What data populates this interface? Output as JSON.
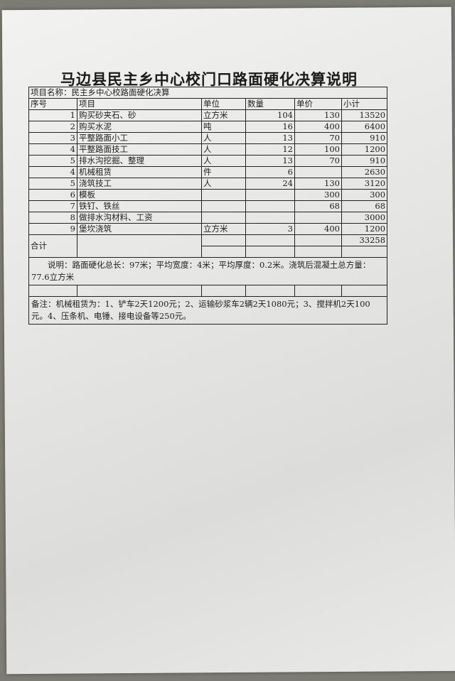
{
  "title": "马边县民主乡中心校门口路面硬化决算说明",
  "project_name": "项目名称：民主乡中心校路面硬化决算",
  "headers": [
    "序号",
    "项目",
    "单位",
    "数量",
    "单价",
    "小计"
  ],
  "rows": [
    [
      "1",
      "购买砂夹石、砂",
      "立方米",
      "104",
      "130",
      "13520"
    ],
    [
      "2",
      "购买水泥",
      "吨",
      "16",
      "400",
      "6400"
    ],
    [
      "3",
      "平整路面小工",
      "人",
      "13",
      "70",
      "910"
    ],
    [
      "4",
      "平整路面技工",
      "人",
      "12",
      "100",
      "1200"
    ],
    [
      "5",
      "排水沟挖掘、整理",
      "人",
      "13",
      "70",
      "910"
    ],
    [
      "4",
      "机械租赁",
      "件",
      "6",
      "",
      "2630"
    ],
    [
      "5",
      "浇筑技工",
      "人",
      "24",
      "130",
      "3120"
    ],
    [
      "6",
      "模板",
      "",
      "",
      "300",
      "300"
    ],
    [
      "7",
      "铁钉、铁丝",
      "",
      "",
      "68",
      "68"
    ],
    [
      "8",
      "做排水沟材料、工资",
      "",
      "",
      "",
      "3000"
    ],
    [
      "9",
      "堡坎浇筑",
      "立方米",
      "3",
      "400",
      "1200"
    ]
  ],
  "total_label": "合计",
  "total_value": "33258",
  "description": "说明：路面硬化总长：97米；平均宽度：4米；平均厚度：0.2米。浇筑后混凝土总方量：77.6立方米",
  "remark": "备注：机械租赁为：1、铲车2天1200元；2、运输砂浆车2辆2天1080元；3、搅拌机2天100元。4、压条机、电锤、接电设备等250元。"
}
